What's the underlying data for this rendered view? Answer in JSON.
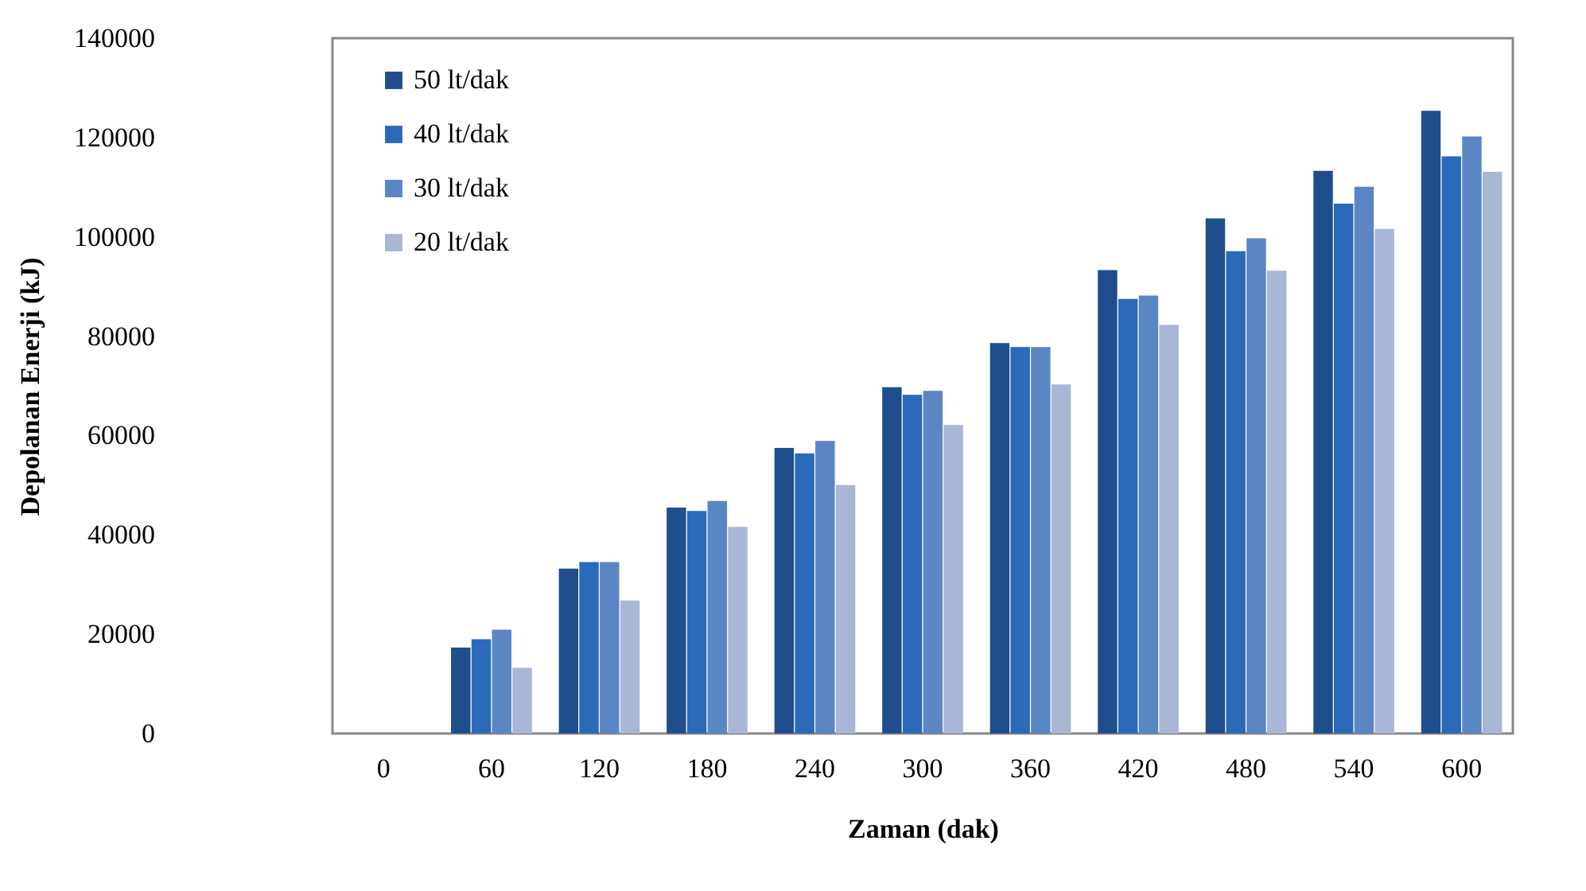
{
  "chart_data": {
    "type": "bar",
    "xlabel": "Zaman (dak)",
    "ylabel": "Depolanan Enerji (kJ)",
    "categories": [
      "0",
      "60",
      "120",
      "180",
      "240",
      "300",
      "360",
      "420",
      "480",
      "540",
      "600"
    ],
    "series": [
      {
        "name": "50 lt/dak",
        "color": "#1f4e8c",
        "values": [
          0,
          17300,
          33200,
          45500,
          57500,
          69700,
          78600,
          93300,
          103700,
          113300,
          125400
        ]
      },
      {
        "name": "40 lt/dak",
        "color": "#2a6ab8",
        "values": [
          0,
          19000,
          34500,
          44800,
          56400,
          68200,
          77800,
          87500,
          97100,
          106700,
          116200
        ]
      },
      {
        "name": "30 lt/dak",
        "color": "#5b86c4",
        "values": [
          0,
          20900,
          34500,
          46800,
          58900,
          69000,
          77800,
          88200,
          99700,
          110100,
          120200
        ]
      },
      {
        "name": "20 lt/dak",
        "color": "#a9b6d6",
        "values": [
          0,
          13200,
          26800,
          41600,
          50000,
          62100,
          70300,
          82300,
          93200,
          101600,
          113100
        ]
      }
    ],
    "ylim": [
      0,
      140000
    ],
    "yticks": [
      0,
      20000,
      40000,
      60000,
      80000,
      100000,
      120000,
      140000
    ],
    "legend": "top left"
  }
}
